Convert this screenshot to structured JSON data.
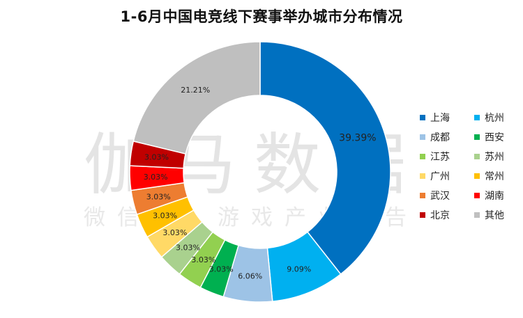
{
  "chart_data": {
    "type": "pie",
    "title": "1-6月中国电竞线下赛事举办城市分布情况",
    "unit": "%",
    "slices": [
      {
        "name": "上海",
        "value": 39.39,
        "label": "39.39%",
        "color": "#0070C0"
      },
      {
        "name": "杭州",
        "value": 9.09,
        "label": "9.09%",
        "color": "#00B0F0"
      },
      {
        "name": "成都",
        "value": 6.06,
        "label": "6.06%",
        "color": "#9DC3E6"
      },
      {
        "name": "西安",
        "value": 3.03,
        "label": "3.03%",
        "color": "#00B050"
      },
      {
        "name": "江苏",
        "value": 3.03,
        "label": "3.03%",
        "color": "#92D050"
      },
      {
        "name": "苏州",
        "value": 3.03,
        "label": "3.03%",
        "color": "#A9D18E"
      },
      {
        "name": "广州",
        "value": 3.03,
        "label": "3.03%",
        "color": "#FFD966"
      },
      {
        "name": "常州",
        "value": 3.03,
        "label": "3.03%",
        "color": "#FFC000"
      },
      {
        "name": "武汉",
        "value": 3.03,
        "label": "3.03%",
        "color": "#ED7D31"
      },
      {
        "name": "湖南",
        "value": 3.03,
        "label": "3.03%",
        "color": "#FF0000"
      },
      {
        "name": "北京",
        "value": 3.03,
        "label": "3.03%",
        "color": "#C00000"
      },
      {
        "name": "其他",
        "value": 21.21,
        "label": "21.21%",
        "color": "#BFBFBF"
      }
    ],
    "legend_position": "right",
    "legend_order": [
      "上海",
      "杭州",
      "成都",
      "西安",
      "江苏",
      "苏州",
      "广州",
      "常州",
      "武汉",
      "湖南",
      "北京",
      "其他"
    ]
  },
  "watermark": {
    "main": "伽马数据",
    "sub": "微信号：游戏产业报告"
  }
}
